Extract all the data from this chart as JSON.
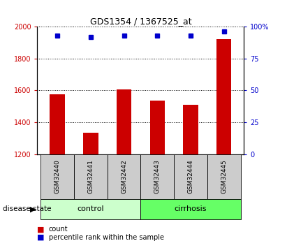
{
  "title": "GDS1354 / 1367525_at",
  "samples": [
    "GSM32440",
    "GSM32441",
    "GSM32442",
    "GSM32443",
    "GSM32444",
    "GSM32445"
  ],
  "counts": [
    1575,
    1335,
    1605,
    1535,
    1510,
    1920
  ],
  "percentiles": [
    93,
    92,
    93,
    93,
    93,
    96
  ],
  "ylim_left": [
    1200,
    2000
  ],
  "ylim_right": [
    0,
    100
  ],
  "yticks_left": [
    1200,
    1400,
    1600,
    1800,
    2000
  ],
  "yticks_right": [
    0,
    25,
    50,
    75,
    100
  ],
  "ytick_labels_right": [
    "0",
    "25",
    "50",
    "75",
    "100%"
  ],
  "bar_color": "#cc0000",
  "dot_color": "#0000cc",
  "bar_width": 0.45,
  "groups": [
    {
      "label": "control",
      "start": 0,
      "end": 2,
      "color": "#ccffcc"
    },
    {
      "label": "cirrhosis",
      "start": 3,
      "end": 5,
      "color": "#66ff66"
    }
  ],
  "sample_box_color": "#cccccc",
  "background_color": "#ffffff",
  "left_tick_color": "#cc0000",
  "right_tick_color": "#0000cc",
  "legend_items": [
    {
      "label": "count",
      "color": "#cc0000"
    },
    {
      "label": "percentile rank within the sample",
      "color": "#0000cc"
    }
  ]
}
